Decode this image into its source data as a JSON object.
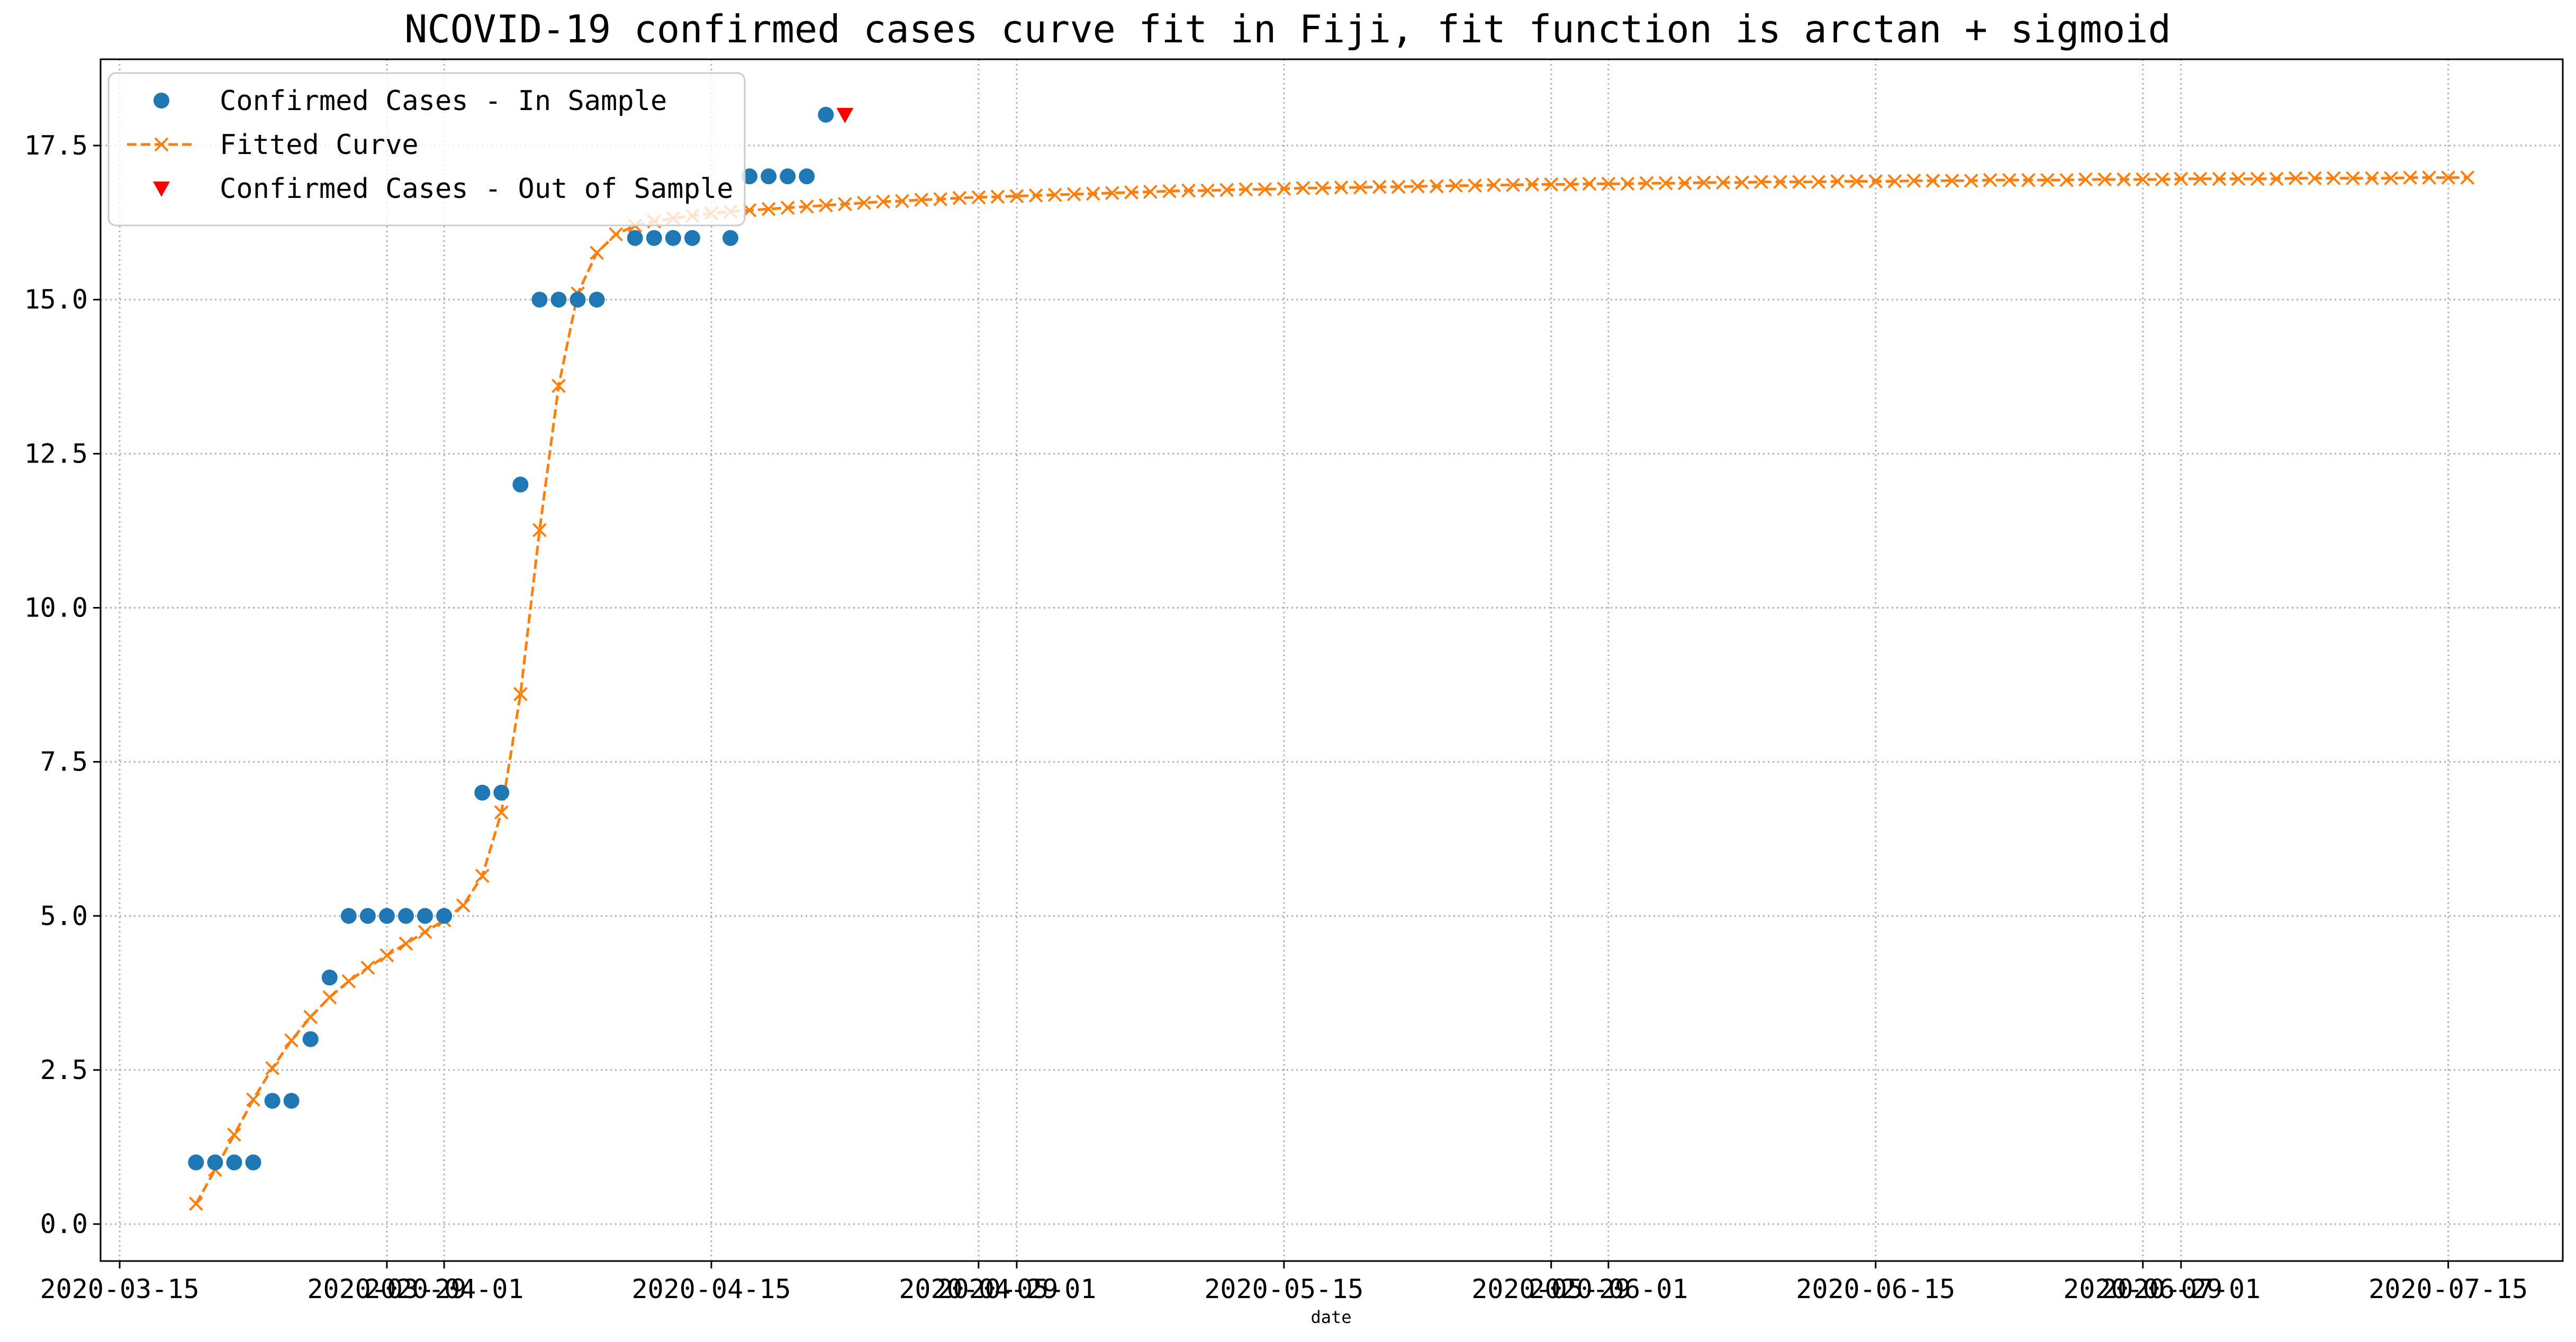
{
  "chart_data": {
    "type": "line",
    "title": "NCOVID-19 confirmed cases curve fit in Fiji, fit function is arctan + sigmoid",
    "xlabel": "date",
    "ylabel": "",
    "x_axis_type": "date",
    "xlim": [
      "2020-03-14",
      "2020-07-21"
    ],
    "ylim": [
      -0.6,
      18.9
    ],
    "y_ticks": [
      0.0,
      2.5,
      5.0,
      7.5,
      10.0,
      12.5,
      15.0,
      17.5
    ],
    "y_tick_labels": [
      "0.0",
      "2.5",
      "5.0",
      "7.5",
      "10.0",
      "12.5",
      "15.0",
      "17.5"
    ],
    "x_ticks": [
      "2020-03-15",
      "2020-03-29",
      "2020-04-01",
      "2020-04-15",
      "2020-04-29",
      "2020-05-01",
      "2020-05-15",
      "2020-05-29",
      "2020-06-01",
      "2020-06-15",
      "2020-06-29",
      "2020-07-01",
      "2020-07-15"
    ],
    "x_tick_labels": [
      "2020-03-15",
      "2020-03-29",
      "2020-04-01",
      "2020-04-15",
      "2020-04-29",
      "2020-05-01",
      "2020-05-15",
      "2020-05-29",
      "2020-06-01",
      "2020-06-15",
      "2020-06-29",
      "2020-07-01",
      "2020-07-15"
    ],
    "grid": true,
    "legend_position": "top-left",
    "series": [
      {
        "name": "Confirmed Cases - In Sample",
        "style": "markers",
        "marker": "circle",
        "color": "#1f77b4",
        "x": [
          "2020-03-19",
          "2020-03-20",
          "2020-03-21",
          "2020-03-22",
          "2020-03-23",
          "2020-03-24",
          "2020-03-25",
          "2020-03-26",
          "2020-03-27",
          "2020-03-28",
          "2020-03-29",
          "2020-03-30",
          "2020-03-31",
          "2020-04-01",
          "2020-04-03",
          "2020-04-04",
          "2020-04-05",
          "2020-04-06",
          "2020-04-07",
          "2020-04-08",
          "2020-04-09",
          "2020-04-11",
          "2020-04-12",
          "2020-04-13",
          "2020-04-14",
          "2020-04-16",
          "2020-04-17",
          "2020-04-18",
          "2020-04-19",
          "2020-04-20",
          "2020-04-21"
        ],
        "y": [
          1,
          1,
          1,
          1,
          2,
          2,
          3,
          4,
          5,
          5,
          5,
          5,
          5,
          5,
          7,
          7,
          12,
          15,
          15,
          15,
          15,
          16,
          16,
          16,
          16,
          16,
          17,
          17,
          17,
          17,
          18
        ]
      },
      {
        "name": "Fitted Curve",
        "style": "dashed-line-x-markers",
        "marker": "x",
        "color": "#ff7f0e",
        "x_start": "2020-03-19",
        "x_step_days": 1,
        "y": [
          0.33,
          0.88,
          1.45,
          2.02,
          2.53,
          2.98,
          3.36,
          3.68,
          3.94,
          4.16,
          4.36,
          4.55,
          4.74,
          4.93,
          5.17,
          5.65,
          6.68,
          8.6,
          11.26,
          13.6,
          15.1,
          15.76,
          16.06,
          16.2,
          16.27,
          16.32,
          16.36,
          16.4,
          16.43,
          16.45,
          16.47,
          16.49,
          16.51,
          16.53,
          16.55,
          16.57,
          16.59,
          16.6,
          16.62,
          16.63,
          16.65,
          16.66,
          16.67,
          16.68,
          16.69,
          16.7,
          16.71,
          16.72,
          16.73,
          16.74,
          16.75,
          16.76,
          16.77,
          16.77,
          16.78,
          16.79,
          16.79,
          16.8,
          16.81,
          16.81,
          16.82,
          16.82,
          16.83,
          16.83,
          16.84,
          16.84,
          16.85,
          16.85,
          16.86,
          16.86,
          16.87,
          16.87,
          16.87,
          16.88,
          16.88,
          16.88,
          16.89,
          16.89,
          16.89,
          16.9,
          16.9,
          16.9,
          16.91,
          16.91,
          16.91,
          16.91,
          16.92,
          16.92,
          16.92,
          16.92,
          16.93,
          16.93,
          16.93,
          16.93,
          16.94,
          16.94,
          16.94,
          16.94,
          16.94,
          16.95,
          16.95,
          16.95,
          16.95,
          16.95,
          16.96,
          16.96,
          16.96,
          16.96,
          16.96,
          16.96,
          16.97,
          16.97,
          16.97,
          16.97,
          16.97,
          16.97,
          16.98,
          16.98,
          16.98,
          16.98
        ]
      },
      {
        "name": "Confirmed Cases - Out of Sample",
        "style": "markers",
        "marker": "triangle-down",
        "color": "#ff0000",
        "x": [
          "2020-04-22"
        ],
        "y": [
          18
        ]
      }
    ]
  }
}
